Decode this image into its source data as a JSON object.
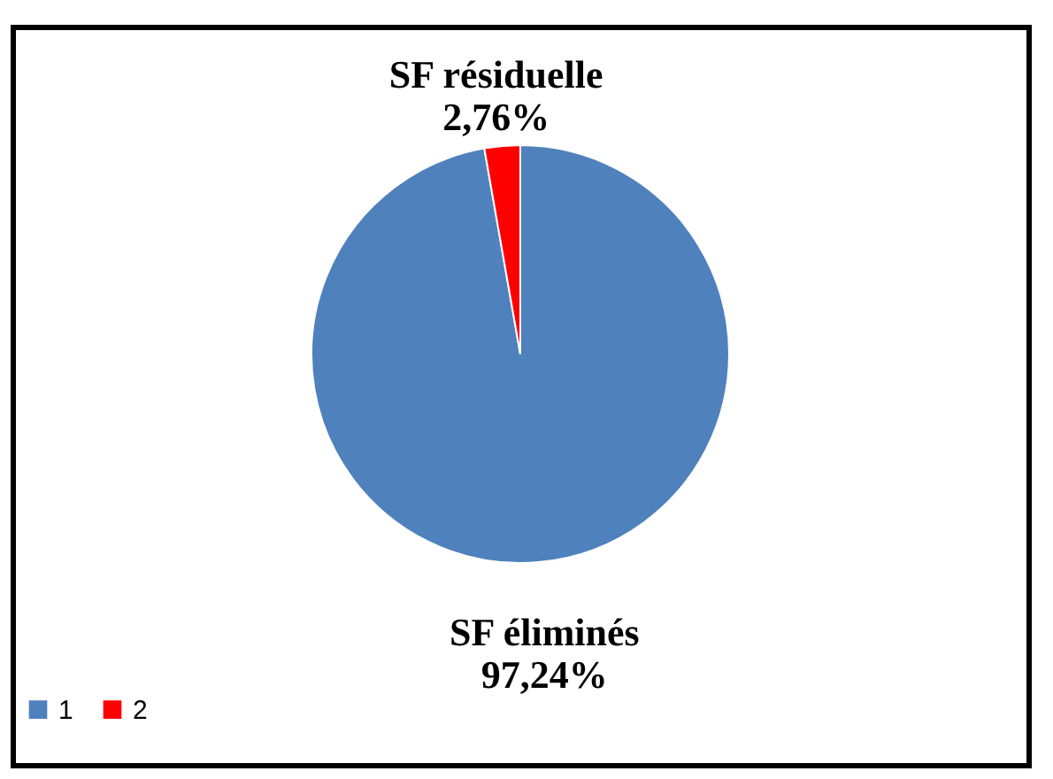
{
  "chart_data": {
    "type": "pie",
    "categories": [
      "1",
      "2"
    ],
    "values": [
      97.24,
      2.76
    ],
    "colors": [
      "#4f81bd",
      "#ff0000"
    ],
    "value_labels": [
      "SF éliminés 97,24%",
      "SF résiduelle 2,76%"
    ],
    "legend": "bottom"
  }
}
